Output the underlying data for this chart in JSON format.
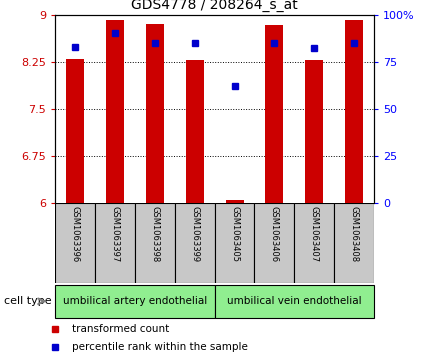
{
  "title": "GDS4778 / 208264_s_at",
  "samples": [
    "GSM1063396",
    "GSM1063397",
    "GSM1063398",
    "GSM1063399",
    "GSM1063405",
    "GSM1063406",
    "GSM1063407",
    "GSM1063408"
  ],
  "transformed_count": [
    8.3,
    8.92,
    8.85,
    8.28,
    6.05,
    8.83,
    8.28,
    8.92
  ],
  "percentile_rank": [
    83,
    90,
    85,
    85,
    62,
    85,
    82,
    85
  ],
  "ylim": [
    6,
    9
  ],
  "yticks": [
    6,
    6.75,
    7.5,
    8.25,
    9
  ],
  "ytick_labels": [
    "6",
    "6.75",
    "7.5",
    "8.25",
    "9"
  ],
  "right_yticks": [
    0,
    25,
    50,
    75,
    100
  ],
  "right_ytick_labels": [
    "0",
    "25",
    "50",
    "75",
    "100%"
  ],
  "bar_color": "#cc0000",
  "dot_color": "#0000cc",
  "group1_label": "umbilical artery endothelial",
  "group2_label": "umbilical vein endothelial",
  "group_color": "#90ee90",
  "group1_indices": [
    0,
    1,
    2,
    3
  ],
  "group2_indices": [
    4,
    5,
    6,
    7
  ],
  "cell_type_label": "cell type",
  "legend_items": [
    {
      "label": "transformed count",
      "color": "#cc0000"
    },
    {
      "label": "percentile rank within the sample",
      "color": "#0000cc"
    }
  ],
  "bar_width": 0.45,
  "xlim": [
    -0.5,
    7.5
  ]
}
